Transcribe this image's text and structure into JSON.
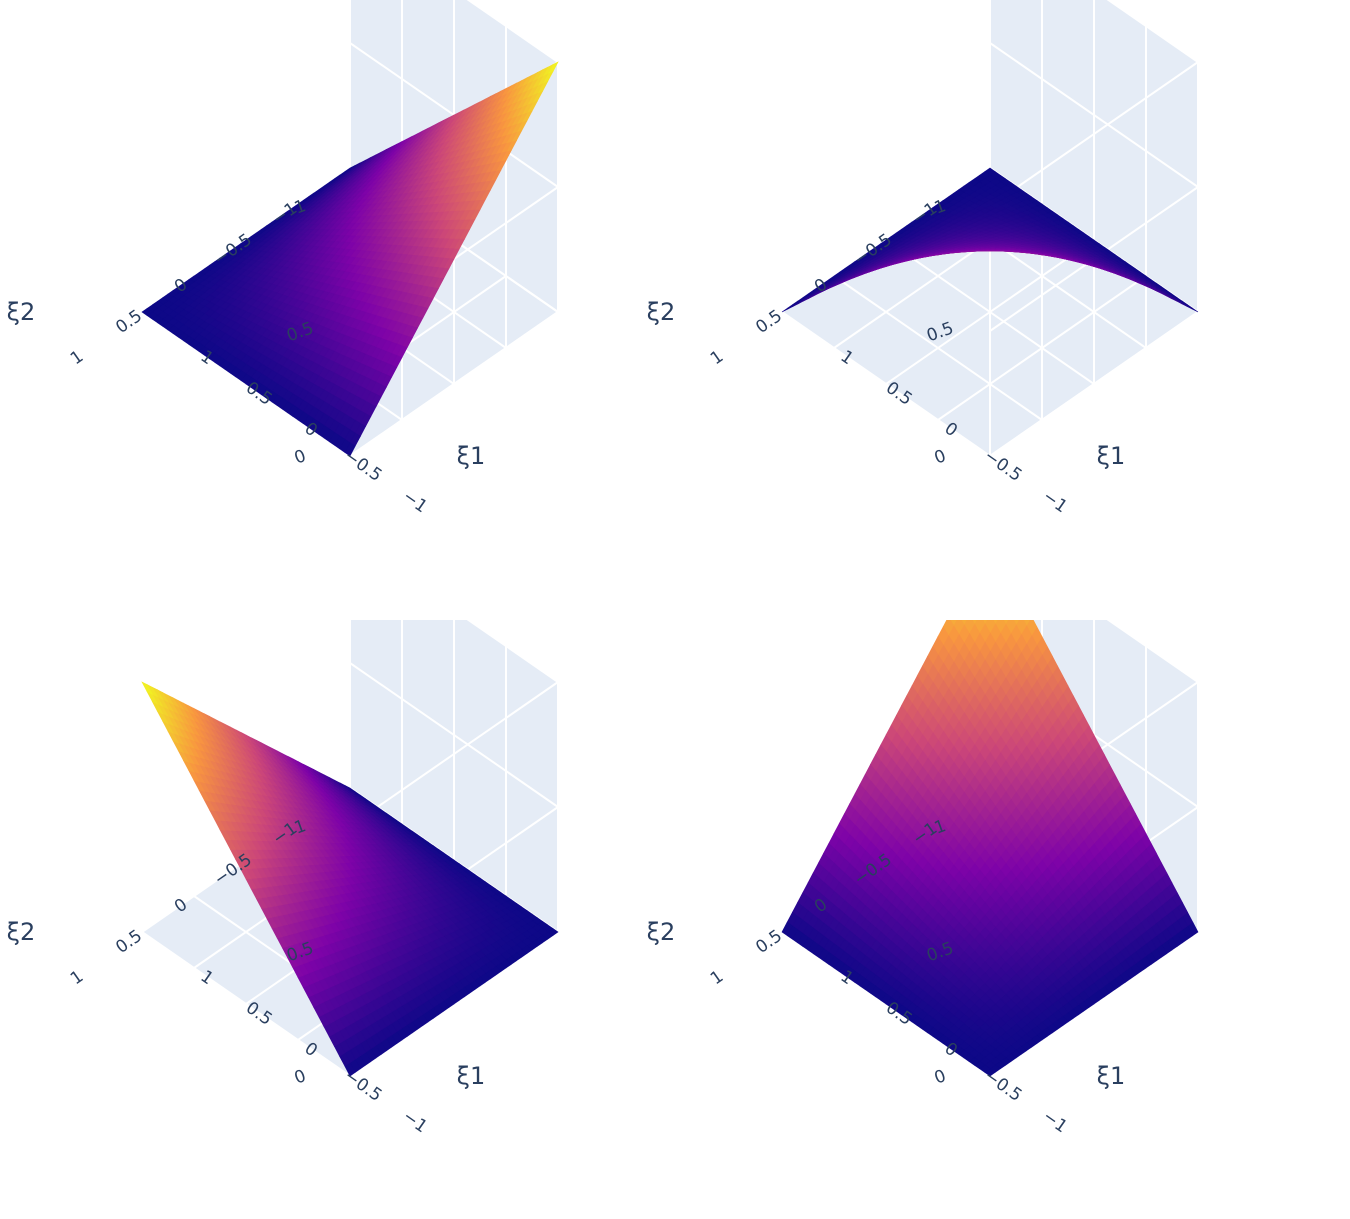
{
  "chart_data": [
    {
      "type": "surface",
      "xlabel": "ξ1",
      "ylabel": "ξ2",
      "zlabel": "",
      "xlim": [
        -1,
        1
      ],
      "ylim": [
        -1,
        1
      ],
      "zlim": [
        0,
        1
      ],
      "x_ticks": [
        "−1",
        "−0.5",
        "0",
        "0.5",
        "1"
      ],
      "y_ticks": [
        "−1",
        "−0.5",
        "0",
        "0.5",
        "1"
      ],
      "z_ticks": [
        "0",
        "0.5",
        "1"
      ],
      "colorscale": [
        "#0d0887",
        "#7e03a8",
        "#cc4778",
        "#f89540",
        "#f0f921"
      ],
      "vertices": [
        {
          "x": -1,
          "y": -1,
          "z": 1
        },
        {
          "x": 1,
          "y": -1,
          "z": 0
        },
        {
          "x": 1,
          "y": 1,
          "z": 0
        },
        {
          "x": -1,
          "y": 1,
          "z": 0
        }
      ]
    },
    {
      "type": "surface",
      "xlabel": "ξ1",
      "ylabel": "ξ2",
      "zlabel": "",
      "xlim": [
        -1,
        1
      ],
      "ylim": [
        -1,
        1
      ],
      "zlim": [
        0,
        1
      ],
      "x_ticks": [
        "−1",
        "−0.5",
        "0",
        "0.5",
        "1"
      ],
      "y_ticks": [
        "−1",
        "−0.5",
        "0",
        "0.5",
        "1"
      ],
      "z_ticks": [
        "0",
        "0.5",
        "1"
      ],
      "colorscale": [
        "#0d0887",
        "#7e03a8",
        "#cc4778",
        "#f89540",
        "#f0f921"
      ],
      "vertices": [
        {
          "x": -1,
          "y": -1,
          "z": 0
        },
        {
          "x": 1,
          "y": -1,
          "z": 0
        },
        {
          "x": 1,
          "y": 1,
          "z": 0
        },
        {
          "x": -1,
          "y": 1,
          "z": 1
        }
      ]
    },
    {
      "type": "surface",
      "xlabel": "ξ1",
      "ylabel": "ξ2",
      "zlabel": "",
      "xlim": [
        -1,
        1
      ],
      "ylim": [
        -1,
        1
      ],
      "zlim": [
        0,
        1
      ],
      "x_ticks": [
        "−1",
        "−0.5",
        "0",
        "0.5",
        "1"
      ],
      "y_ticks": [
        "−1",
        "−0.5",
        "0",
        "0.5",
        "1"
      ],
      "z_ticks": [
        "0",
        "0.5",
        "1"
      ],
      "colorscale": [
        "#0d0887",
        "#7e03a8",
        "#cc4778",
        "#f89540",
        "#f0f921"
      ],
      "vertices": [
        {
          "x": -1,
          "y": -1,
          "z": 0
        },
        {
          "x": 1,
          "y": -1,
          "z": 0
        },
        {
          "x": 1,
          "y": 1,
          "z": 1
        },
        {
          "x": -1,
          "y": 1,
          "z": 0
        }
      ]
    },
    {
      "type": "surface",
      "xlabel": "ξ1",
      "ylabel": "ξ2",
      "zlabel": "",
      "xlim": [
        -1,
        1
      ],
      "ylim": [
        -1,
        1
      ],
      "zlim": [
        0,
        1
      ],
      "x_ticks": [
        "−1",
        "−0.5",
        "0",
        "0.5",
        "1"
      ],
      "y_ticks": [
        "−1",
        "−0.5",
        "0",
        "0.5",
        "1"
      ],
      "z_ticks": [
        "0",
        "0.5",
        "1"
      ],
      "colorscale": [
        "#0d0887",
        "#7e03a8",
        "#cc4778",
        "#f89540",
        "#f0f921"
      ],
      "vertices": [
        {
          "x": -1,
          "y": -1,
          "z": 0
        },
        {
          "x": 1,
          "y": -1,
          "z": 1
        },
        {
          "x": 1,
          "y": 1,
          "z": 0
        },
        {
          "x": -1,
          "y": 1,
          "z": 0
        }
      ]
    }
  ]
}
